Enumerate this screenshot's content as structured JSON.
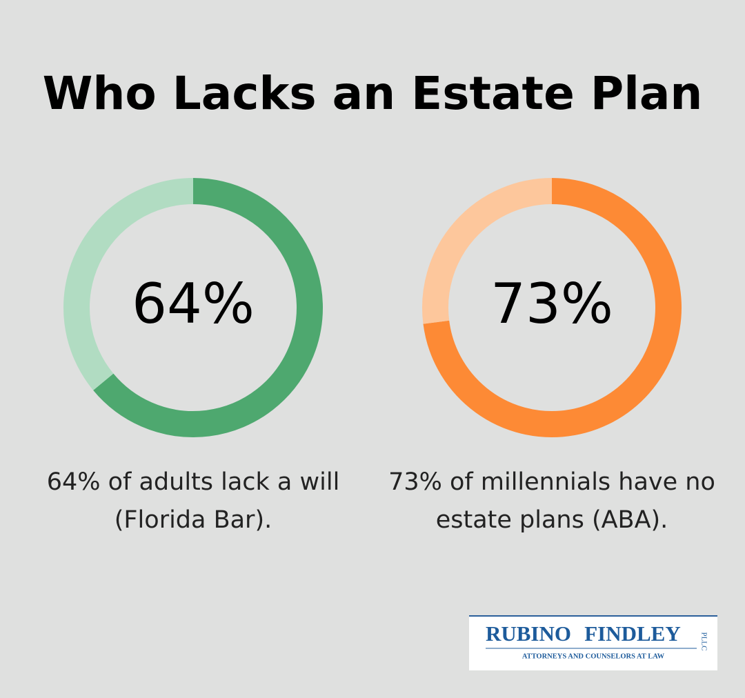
{
  "title": "Who Lacks an Estate Plan",
  "chart_data": [
    {
      "type": "donut",
      "values": [
        64,
        36
      ],
      "value_labels": [
        "64%",
        null
      ],
      "colors": [
        "#4ea86f",
        "#b1dcc2"
      ],
      "caption": [
        "64% of adults lack a will",
        "(Florida Bar)."
      ]
    },
    {
      "type": "donut",
      "values": [
        73,
        27
      ],
      "value_labels": [
        "73%",
        null
      ],
      "colors": [
        "#fd8a35",
        "#fdc79c"
      ],
      "caption": [
        "73% of millennials have no",
        "estate plans (ABA)."
      ]
    }
  ],
  "logo": {
    "name_first": "RUBINO",
    "name_second": "FINDLEY",
    "suffix": "PLLC",
    "tagline": "ATTORNEYS AND COUNSELORS AT LAW"
  }
}
